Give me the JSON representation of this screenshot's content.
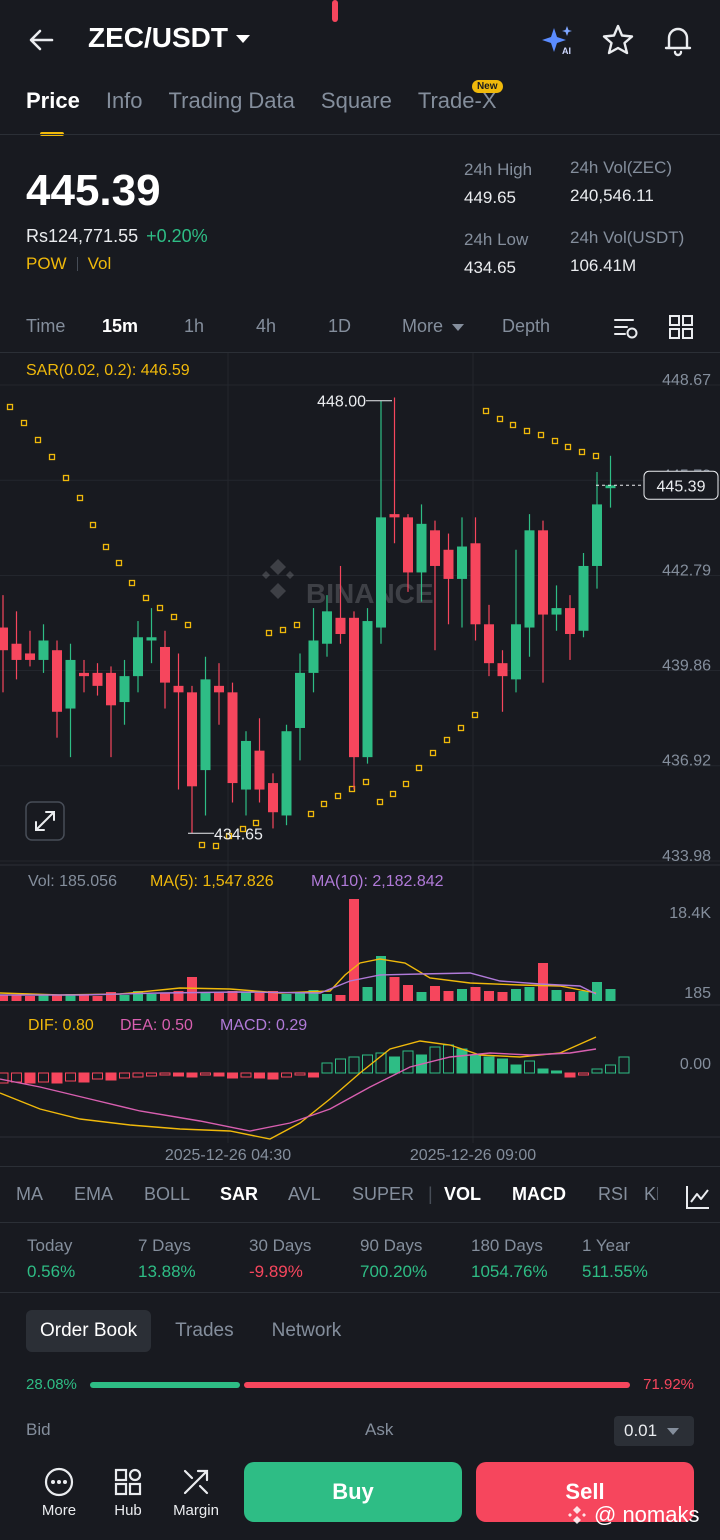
{
  "header": {
    "pair": "ZEC/USDT",
    "icons": [
      "back-arrow-icon",
      "ai-sparkle-icon",
      "star-icon",
      "bell-icon"
    ]
  },
  "tabs": [
    {
      "label": "Price",
      "active": true
    },
    {
      "label": "Info"
    },
    {
      "label": "Trading Data"
    },
    {
      "label": "Square"
    },
    {
      "label": "Trade-X",
      "badge": "New"
    }
  ],
  "price": {
    "last": "445.39",
    "fiat": "Rs124,771.55",
    "change": "+0.20%",
    "tag1": "POW",
    "tag2": "Vol"
  },
  "stats": {
    "high_label": "24h High",
    "high": "449.65",
    "low_label": "24h Low",
    "low": "434.65",
    "vol_base_label": "24h Vol(ZEC)",
    "vol_base": "240,546.11",
    "vol_quote_label": "24h Vol(USDT)",
    "vol_quote": "106.41M"
  },
  "intervals": {
    "time": "Time",
    "m15": "15m",
    "h1": "1h",
    "h4": "4h",
    "d1": "1D",
    "more": "More",
    "depth": "Depth"
  },
  "chart": {
    "sar_legend": "SAR(0.02, 0.2): 446.59",
    "y_labels": [
      "448.67",
      "445.73",
      "442.79",
      "439.86",
      "436.92",
      "433.98"
    ],
    "current_price": "445.39",
    "high_mark": "448.00",
    "low_mark": "434.65",
    "watermark": "BINANCE",
    "vol_legend": "Vol: 185.056",
    "vol_ma5": "MA(5): 1,547.826",
    "vol_ma10": "MA(10): 2,182.842",
    "vol_y_top": "18.4K",
    "vol_y_bottom": "185",
    "macd_dif": "DIF: 0.80",
    "macd_dea": "DEA: 0.50",
    "macd_val": "MACD: 0.29",
    "macd_zero": "0.00",
    "x_labels": [
      "2025-12-26 04:30",
      "2025-12-26 09:00"
    ],
    "colors": {
      "up": "#2ebd85",
      "down": "#f6465d",
      "sar": "#f0b90b"
    }
  },
  "indicators": {
    "ma": "MA",
    "ema": "EMA",
    "boll": "BOLL",
    "sar": "SAR",
    "avl": "AVL",
    "super": "SUPER",
    "vol": "VOL",
    "macd": "MACD",
    "rsi": "RSI",
    "kdj": "KDJ"
  },
  "performance": [
    {
      "label": "Today",
      "value": "0.56%"
    },
    {
      "label": "7 Days",
      "value": "13.88%"
    },
    {
      "label": "30 Days",
      "value": "-9.89%"
    },
    {
      "label": "90 Days",
      "value": "700.20%"
    },
    {
      "label": "180 Days",
      "value": "1054.76%"
    },
    {
      "label": "1 Year",
      "value": "511.55%"
    }
  ],
  "orderbook": {
    "tabs": [
      "Order Book",
      "Trades",
      "Network"
    ],
    "bid_pct": "28.08%",
    "ask_pct": "71.92%",
    "bid_fraction": 0.2808,
    "bid_label": "Bid",
    "ask_label": "Ask",
    "precision": "0.01"
  },
  "bottom": {
    "more": "More",
    "hub": "Hub",
    "margin": "Margin",
    "buy": "Buy",
    "sell": "Sell",
    "watermark": "@ nomaks"
  }
}
